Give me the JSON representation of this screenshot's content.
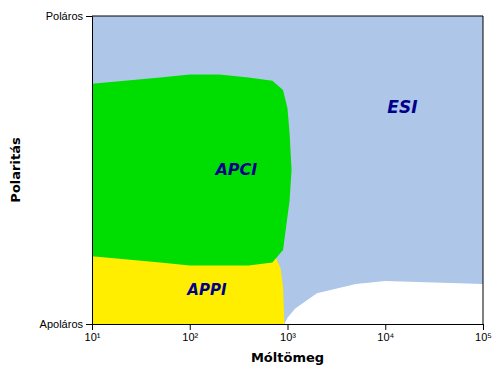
{
  "chart_data": {
    "type": "area",
    "xlabel": "Móltömeg",
    "ylabel": "Polaritás",
    "log": "x",
    "xlim": [
      10,
      100000
    ],
    "ylim": [
      0,
      1
    ],
    "xticks": [
      {
        "value": 10,
        "label": "10¹"
      },
      {
        "value": 100,
        "label": "10²"
      },
      {
        "value": 1000,
        "label": "10³"
      },
      {
        "value": 10000,
        "label": "10⁴"
      },
      {
        "value": 100000,
        "label": "10⁵"
      }
    ],
    "yticks": [
      {
        "value": 0,
        "label": "Apoláros"
      },
      {
        "value": 1,
        "label": "Poláros"
      }
    ],
    "series": [
      {
        "color": "#aec6e8",
        "x": [
          10,
          100000,
          100000,
          10
        ],
        "values": [
          0,
          0,
          1,
          1
        ]
      },
      {
        "color": "#ffee00",
        "x": [
          10,
          50,
          100,
          200,
          400,
          600,
          750,
          850,
          900,
          930,
          10
        ],
        "values": [
          0.22,
          0.22,
          0.22,
          0.22,
          0.22,
          0.22,
          0.22,
          0.18,
          0.12,
          0.0,
          0.0
        ]
      },
      {
        "color": "#00dd00",
        "x": [
          10,
          50,
          100,
          200,
          400,
          700,
          900,
          1000,
          1050,
          1100,
          1100,
          1050,
          900,
          700,
          400,
          200,
          100,
          50,
          10
        ],
        "values": [
          0.78,
          0.8,
          0.81,
          0.81,
          0.8,
          0.79,
          0.76,
          0.7,
          0.62,
          0.5,
          0.5,
          0.4,
          0.24,
          0.2,
          0.19,
          0.19,
          0.19,
          0.2,
          0.22
        ]
      },
      {
        "color": "#ffffff",
        "x": [
          930,
          1000,
          2000,
          5000,
          10000,
          100000,
          100000,
          10000,
          5000,
          2000,
          1200,
          1000,
          930
        ],
        "values": [
          0.0,
          0.0,
          0.0,
          0.0,
          0.0,
          0.0,
          0.13,
          0.14,
          0.13,
          0.1,
          0.05,
          0.02,
          0.0
        ]
      }
    ],
    "annotations": [
      {
        "text": "ESI",
        "x": 15000,
        "y": 0.7,
        "color": "#00008B"
      },
      {
        "text": "APCI",
        "x": 300,
        "y": 0.5,
        "color": "#00008B"
      },
      {
        "text": "APPI",
        "x": 150,
        "y": 0.11,
        "color": "#00008B"
      }
    ]
  }
}
